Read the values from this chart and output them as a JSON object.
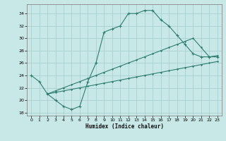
{
  "title": "",
  "xlabel": "Humidex (Indice chaleur)",
  "bg_color": "#c8e8e8",
  "grid_color": "#a8d0d0",
  "line_color": "#2e7d6e",
  "xlim": [
    -0.5,
    23.5
  ],
  "ylim": [
    17.5,
    35.5
  ],
  "xticks": [
    0,
    1,
    2,
    3,
    4,
    5,
    6,
    7,
    8,
    9,
    10,
    11,
    12,
    13,
    14,
    15,
    16,
    17,
    18,
    19,
    20,
    21,
    22,
    23
  ],
  "yticks": [
    18,
    20,
    22,
    24,
    26,
    28,
    30,
    32,
    34
  ],
  "curve1_x": [
    0,
    1,
    2,
    3,
    4,
    5,
    6,
    7,
    8,
    9,
    10,
    11,
    12,
    13,
    14,
    15,
    16,
    17,
    18,
    19,
    20,
    21,
    22,
    23
  ],
  "curve1_y": [
    24,
    23,
    21,
    20,
    19,
    18.5,
    19,
    23,
    26,
    31,
    31.5,
    32,
    34,
    34,
    34.5,
    34.5,
    33,
    32,
    30.5,
    29,
    27.5,
    27,
    27,
    27
  ],
  "curve2_x": [
    2,
    3,
    4,
    5,
    6,
    7,
    8,
    9,
    10,
    11,
    12,
    13,
    14,
    15,
    16,
    17,
    18,
    19,
    20,
    21,
    22,
    23
  ],
  "curve2_y": [
    21,
    21.25,
    21.5,
    21.75,
    22.0,
    22.25,
    22.5,
    22.75,
    23.0,
    23.25,
    23.5,
    23.75,
    24.0,
    24.25,
    24.5,
    24.75,
    25.0,
    25.25,
    25.5,
    25.75,
    26.0,
    26.25
  ],
  "curve3_x": [
    2,
    3,
    4,
    5,
    6,
    7,
    8,
    9,
    10,
    11,
    12,
    13,
    14,
    15,
    16,
    17,
    18,
    19,
    20,
    21,
    22,
    23
  ],
  "curve3_y": [
    21,
    21.5,
    22.0,
    22.5,
    23.0,
    23.5,
    24.0,
    24.5,
    25.0,
    25.5,
    26.0,
    26.5,
    27.0,
    27.5,
    28.0,
    28.5,
    29.0,
    29.5,
    30.0,
    28.5,
    27.0,
    27.2
  ]
}
